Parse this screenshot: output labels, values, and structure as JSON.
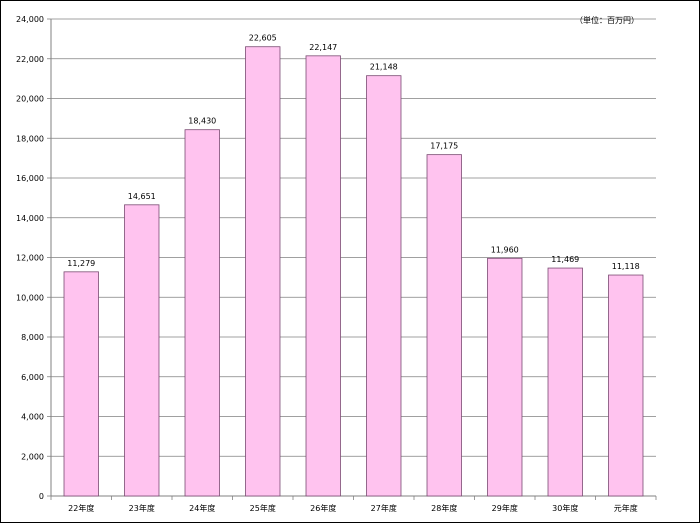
{
  "chart_data": {
    "type": "bar",
    "categories": [
      "22年度",
      "23年度",
      "24年度",
      "25年度",
      "26年度",
      "27年度",
      "28年度",
      "29年度",
      "30年度",
      "元年度"
    ],
    "values": [
      11279,
      14651,
      18430,
      22605,
      22147,
      21148,
      17175,
      11960,
      11469,
      11118
    ],
    "value_labels": [
      "11,279",
      "14,651",
      "18,430",
      "22,605",
      "22,147",
      "21,148",
      "17,175",
      "11,960",
      "11,469",
      "11,118"
    ],
    "ylim": [
      0,
      24000
    ],
    "yticks": [
      0,
      2000,
      4000,
      6000,
      8000,
      10000,
      12000,
      14000,
      16000,
      18000,
      20000,
      22000,
      24000
    ],
    "ytick_labels": [
      "0",
      "2,000",
      "4,000",
      "6,000",
      "8,000",
      "10,000",
      "12,000",
      "14,000",
      "16,000",
      "18,000",
      "20,000",
      "22,000",
      "24,000"
    ],
    "unit_label": "（単位：百万円）",
    "grid": true,
    "colors": {
      "bar_fill": "#ffc3ef",
      "bar_stroke": "#7a4a72",
      "grid": "#808080",
      "axis": "#808080"
    }
  }
}
